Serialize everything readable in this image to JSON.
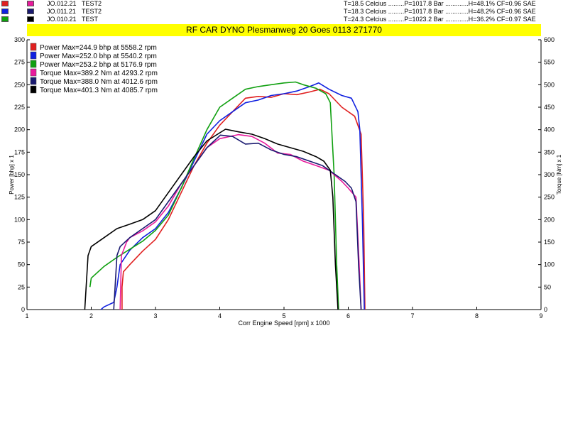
{
  "runs": [
    {
      "id": "JO.012.21",
      "name": "TEST2",
      "colors": [
        "#e02020",
        "#e81a9c"
      ]
    },
    {
      "id": "JO.011.21",
      "name": "TEST2",
      "colors": [
        "#1020e0",
        "#1a1a70"
      ]
    },
    {
      "id": "JO.010.21",
      "name": "TEST",
      "colors": [
        "#10a010",
        "#000000"
      ]
    }
  ],
  "conditions": [
    "T=18.5 Celcius .........P=1017.8 Bar .............H=48.1% CF=0.96 SAE",
    "T=18.3 Celcius .........P=1017.8 Bar .............H=48.2% CF=0.96 SAE",
    "T=24.3 Celcius .........P=1023.2 Bar .............H=36.2% CF=0.97 SAE"
  ],
  "banner": "RF CAR DYNO  Plesmanweg 20 Goes  0113 271770",
  "chart_data": {
    "type": "line",
    "xlabel": "Corr Engine Speed [rpm] x 1000",
    "ylabel_left": "Power [bhp] x 1",
    "ylabel_right": "Torque [Nm] x 1",
    "xlim": [
      1,
      9
    ],
    "ylim_left": [
      0,
      300
    ],
    "ylim_right": [
      0,
      600
    ],
    "x_ticks": [
      "1",
      "2",
      "3",
      "4",
      "5",
      "6",
      "7",
      "8",
      "9"
    ],
    "y_ticks_left": [
      "0",
      "25",
      "50",
      "75",
      "100",
      "125",
      "150",
      "175",
      "200",
      "225",
      "250",
      "275",
      "300"
    ],
    "y_ticks_right": [
      "0",
      "50",
      "100",
      "150",
      "200",
      "250",
      "300",
      "350",
      "400",
      "450",
      "500",
      "550",
      "600"
    ],
    "grid": false,
    "legend": [
      {
        "label": "Power  Max=244.9 bhp at 5558.2 rpm",
        "color": "#e02020"
      },
      {
        "label": "Power  Max=252.0 bhp at 5540.2 rpm",
        "color": "#1020e0"
      },
      {
        "label": "Power  Max=253.2 bhp at 5176.9 rpm",
        "color": "#10a010"
      },
      {
        "label": "Torque  Max=389.2 Nm at 4293.2 rpm",
        "color": "#e81a9c"
      },
      {
        "label": "Torque  Max=388.0 Nm at 4012.6 rpm",
        "color": "#1a1a70"
      },
      {
        "label": "Torque  Max=401.3 Nm at 4085.7 rpm",
        "color": "#000000"
      }
    ],
    "series": [
      {
        "color": "#e02020",
        "axis": "left",
        "x": [
          2.48,
          2.48,
          2.5,
          2.6,
          2.8,
          3.0,
          3.2,
          3.4,
          3.6,
          3.8,
          4.0,
          4.2,
          4.4,
          4.6,
          4.8,
          5.0,
          5.2,
          5.4,
          5.56,
          5.7,
          5.9,
          6.1,
          6.2,
          6.24,
          6.26
        ],
        "y": [
          0,
          25,
          42,
          50,
          65,
          78,
          100,
          130,
          160,
          185,
          205,
          220,
          235,
          237,
          236,
          240,
          239,
          242,
          245,
          240,
          225,
          215,
          195,
          100,
          0
        ]
      },
      {
        "color": "#1020e0",
        "axis": "left",
        "x": [
          2.15,
          2.2,
          2.35,
          2.4,
          2.45,
          2.6,
          2.8,
          3.0,
          3.2,
          3.4,
          3.6,
          3.8,
          4.0,
          4.2,
          4.4,
          4.6,
          4.8,
          5.0,
          5.2,
          5.4,
          5.54,
          5.7,
          5.9,
          6.05,
          6.15,
          6.18,
          6.22,
          6.25
        ],
        "y": [
          0,
          3,
          8,
          25,
          50,
          66,
          80,
          90,
          108,
          135,
          165,
          195,
          210,
          220,
          230,
          233,
          238,
          240,
          243,
          248,
          252,
          245,
          238,
          235,
          220,
          200,
          100,
          0
        ]
      },
      {
        "color": "#10a010",
        "axis": "left",
        "x": [
          1.98,
          2.0,
          2.2,
          2.4,
          2.6,
          2.8,
          3.0,
          3.2,
          3.4,
          3.6,
          3.8,
          4.0,
          4.2,
          4.4,
          4.6,
          4.8,
          5.0,
          5.18,
          5.3,
          5.5,
          5.65,
          5.72,
          5.78,
          5.82,
          5.85
        ],
        "y": [
          25,
          35,
          48,
          58,
          67,
          76,
          88,
          105,
          135,
          168,
          200,
          225,
          235,
          245,
          248,
          250,
          252,
          253,
          250,
          246,
          240,
          230,
          150,
          50,
          0
        ]
      },
      {
        "color": "#e81a9c",
        "axis": "right",
        "x": [
          2.45,
          2.47,
          2.55,
          2.6,
          2.8,
          3.0,
          3.2,
          3.4,
          3.6,
          3.8,
          4.0,
          4.29,
          4.5,
          4.7,
          4.9,
          5.1,
          5.3,
          5.5,
          5.7,
          5.9,
          6.0,
          6.12,
          6.17,
          6.2
        ],
        "y": [
          0,
          120,
          150,
          160,
          175,
          195,
          230,
          280,
          320,
          360,
          380,
          389,
          385,
          370,
          348,
          345,
          330,
          320,
          310,
          285,
          270,
          250,
          100,
          0
        ]
      },
      {
        "color": "#1a1a70",
        "axis": "right",
        "x": [
          2.35,
          2.4,
          2.45,
          2.6,
          2.8,
          3.0,
          3.2,
          3.4,
          3.6,
          3.8,
          4.01,
          4.2,
          4.4,
          4.6,
          4.8,
          5.0,
          5.2,
          5.4,
          5.6,
          5.8,
          5.95,
          6.05,
          6.12,
          6.16,
          6.2
        ],
        "y": [
          0,
          120,
          140,
          160,
          180,
          200,
          240,
          280,
          320,
          360,
          388,
          385,
          368,
          370,
          355,
          345,
          340,
          330,
          320,
          300,
          285,
          270,
          240,
          100,
          0
        ]
      },
      {
        "color": "#000000",
        "axis": "right",
        "x": [
          1.9,
          1.95,
          2.0,
          2.2,
          2.4,
          2.6,
          2.8,
          3.0,
          3.2,
          3.4,
          3.6,
          3.8,
          4.09,
          4.3,
          4.5,
          4.7,
          4.9,
          5.1,
          5.3,
          5.5,
          5.62,
          5.72,
          5.76,
          5.8,
          5.84
        ],
        "y": [
          0,
          120,
          140,
          160,
          180,
          190,
          200,
          220,
          260,
          300,
          340,
          375,
          401,
          395,
          390,
          380,
          368,
          360,
          352,
          340,
          330,
          310,
          250,
          100,
          0
        ]
      }
    ]
  }
}
